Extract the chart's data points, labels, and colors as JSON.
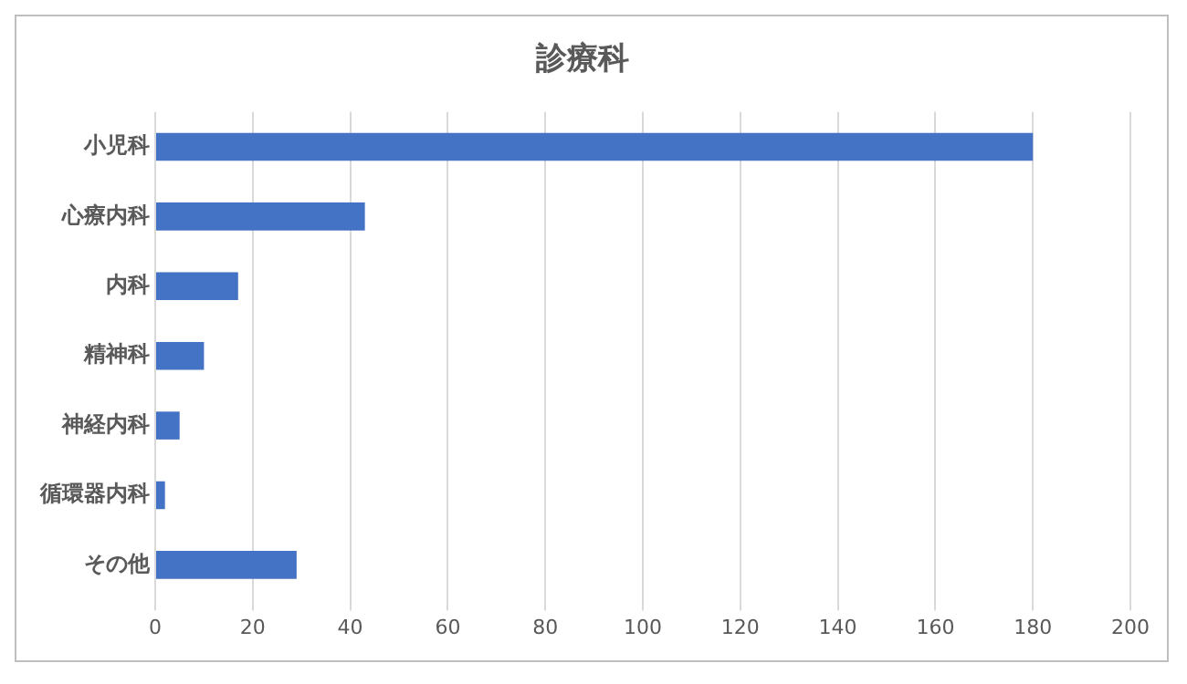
{
  "chart_data": {
    "type": "bar",
    "orientation": "horizontal",
    "title": "診療科",
    "categories": [
      "小児科",
      "心療内科",
      "内科",
      "精神科",
      "神経内科",
      "循環器内科",
      "その他"
    ],
    "values": [
      180,
      43,
      17,
      10,
      5,
      2,
      29
    ],
    "color": "#4472c4",
    "xlim": [
      0,
      200
    ],
    "xticks": [
      0,
      20,
      40,
      60,
      80,
      100,
      120,
      140,
      160,
      180,
      200
    ],
    "grid": "x",
    "legend": false
  }
}
